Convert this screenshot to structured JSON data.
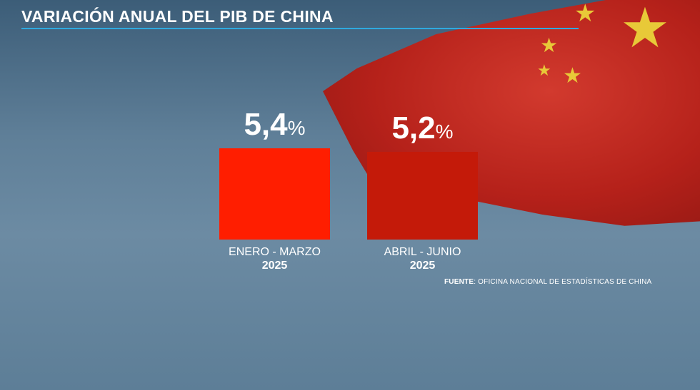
{
  "title": "VARIACIÓN ANUAL DEL PIB DE CHINA",
  "source_label": "FUENTE",
  "source_text": ": OFICINA NACIONAL DE ESTADÍSTICAS DE CHINA",
  "colors": {
    "accent_line": "#2fa9e0",
    "bar1": "#ff1e00",
    "bar2": "#c41a09"
  },
  "chart_data": {
    "type": "bar",
    "categories": [
      "ENERO - MARZO",
      "ABRIL - JUNIO"
    ],
    "category_years": [
      "2025",
      "2025"
    ],
    "values": [
      5.4,
      5.2
    ],
    "value_labels": [
      "5,4",
      "5,2"
    ],
    "unit": "%",
    "title": "VARIACIÓN ANUAL DEL PIB DE CHINA",
    "xlabel": "",
    "ylabel": ""
  }
}
